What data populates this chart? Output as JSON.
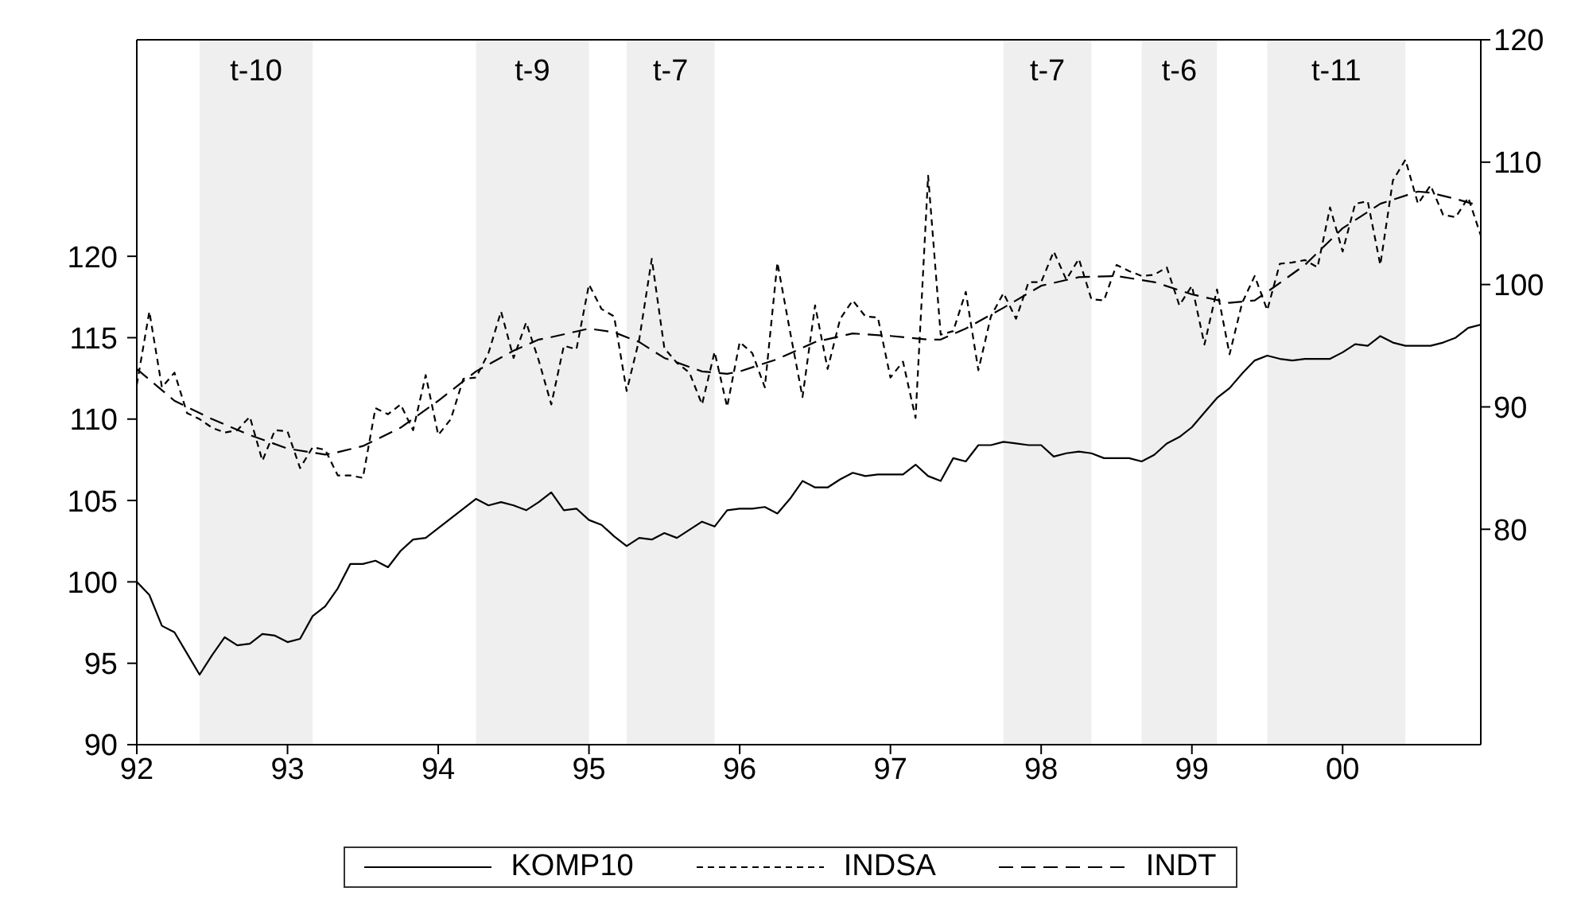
{
  "chart_data": {
    "type": "line",
    "x": [
      "1992-01",
      "1992-02",
      "1992-03",
      "1992-04",
      "1992-05",
      "1992-06",
      "1992-07",
      "1992-08",
      "1992-09",
      "1992-10",
      "1992-11",
      "1992-12",
      "1993-01",
      "1993-02",
      "1993-03",
      "1993-04",
      "1993-05",
      "1993-06",
      "1993-07",
      "1993-08",
      "1993-09",
      "1993-10",
      "1993-11",
      "1993-12",
      "1994-01",
      "1994-02",
      "1994-03",
      "1994-04",
      "1994-05",
      "1994-06",
      "1994-07",
      "1994-08",
      "1994-09",
      "1994-10",
      "1994-11",
      "1994-12",
      "1995-01",
      "1995-02",
      "1995-03",
      "1995-04",
      "1995-05",
      "1995-06",
      "1995-07",
      "1995-08",
      "1995-09",
      "1995-10",
      "1995-11",
      "1995-12",
      "1996-01",
      "1996-02",
      "1996-03",
      "1996-04",
      "1996-05",
      "1996-06",
      "1996-07",
      "1996-08",
      "1996-09",
      "1996-10",
      "1996-11",
      "1996-12",
      "1997-01",
      "1997-02",
      "1997-03",
      "1997-04",
      "1997-05",
      "1997-06",
      "1997-07",
      "1997-08",
      "1997-09",
      "1997-10",
      "1997-11",
      "1997-12",
      "1998-01",
      "1998-02",
      "1998-03",
      "1998-04",
      "1998-05",
      "1998-06",
      "1998-07",
      "1998-08",
      "1998-09",
      "1998-10",
      "1998-11",
      "1998-12",
      "1999-01",
      "1999-02",
      "1999-03",
      "1999-04",
      "1999-05",
      "1999-06",
      "1999-07",
      "1999-08",
      "1999-09",
      "1999-10",
      "1999-11",
      "1999-12",
      "2000-01",
      "2000-02",
      "2000-03",
      "2000-04",
      "2000-05",
      "2000-06",
      "2000-07",
      "2000-08",
      "2000-09",
      "2000-10",
      "2000-11",
      "2000-12"
    ],
    "series": [
      {
        "name": "KOMP10",
        "color": "#000000",
        "line_style": "solid",
        "values": [
          100.0,
          99.2,
          97.3,
          96.9,
          95.6,
          94.3,
          95.5,
          96.6,
          96.1,
          96.2,
          96.8,
          96.7,
          96.3,
          96.5,
          97.9,
          98.5,
          99.6,
          101.1,
          101.1,
          101.3,
          100.9,
          101.9,
          102.6,
          102.7,
          103.3,
          103.9,
          104.5,
          105.1,
          104.7,
          104.9,
          104.7,
          104.4,
          104.9,
          105.5,
          104.4,
          104.5,
          103.8,
          103.5,
          102.8,
          102.2,
          102.7,
          102.6,
          103.0,
          102.7,
          103.2,
          103.7,
          103.4,
          104.4,
          104.5,
          104.5,
          104.6,
          104.2,
          105.1,
          106.2,
          105.8,
          105.8,
          106.3,
          106.7,
          106.5,
          106.6,
          106.6,
          106.6,
          107.2,
          106.5,
          106.2,
          107.6,
          107.4,
          108.4,
          108.4,
          108.6,
          108.5,
          108.4,
          108.4,
          107.7,
          107.9,
          108.0,
          107.9,
          107.6,
          107.6,
          107.6,
          107.4,
          107.8,
          108.5,
          108.9,
          109.5,
          110.4,
          111.3,
          111.9,
          112.8,
          113.6,
          113.9,
          113.7,
          113.6,
          113.7,
          113.7,
          113.7,
          114.1,
          114.6,
          114.5,
          115.1,
          114.7,
          114.5,
          114.5,
          114.5,
          114.7,
          115.0,
          115.6,
          115.8
        ]
      },
      {
        "name": "INDSA",
        "color": "#000000",
        "line_style": "dashed",
        "axis": "y2",
        "values": [
          91.8,
          97.8,
          91.6,
          92.8,
          89.5,
          89.0,
          88.3,
          87.9,
          88.1,
          89.2,
          85.6,
          88.1,
          88.0,
          85.0,
          86.7,
          86.5,
          84.4,
          84.4,
          84.2,
          89.9,
          89.4,
          90.2,
          88.1,
          92.6,
          87.7,
          89.0,
          92.3,
          92.4,
          94.4,
          97.8,
          94.0,
          96.9,
          93.8,
          90.2,
          95.0,
          94.7,
          100.0,
          98.0,
          97.4,
          91.3,
          95.5,
          102.1,
          94.8,
          93.6,
          92.8,
          90.2,
          94.5,
          90.0,
          95.3,
          94.4,
          91.6,
          101.8,
          96.2,
          90.8,
          98.3,
          93.1,
          97.2,
          98.7,
          97.4,
          97.3,
          92.4,
          93.7,
          89.1,
          108.9,
          95.9,
          96.2,
          99.4,
          93.0,
          97.4,
          99.3,
          97.2,
          100.2,
          100.2,
          102.7,
          100.4,
          102.1,
          98.8,
          98.7,
          101.6,
          101.1,
          100.7,
          100.8,
          101.4,
          98.3,
          99.9,
          95.1,
          99.6,
          94.3,
          98.5,
          100.7,
          97.9,
          101.7,
          101.8,
          102.0,
          101.4,
          106.3,
          102.7,
          106.6,
          106.8,
          101.6,
          108.5,
          110.2,
          106.6,
          108.1,
          105.7,
          105.5,
          107.1,
          104.0
        ]
      },
      {
        "name": "INDT",
        "color": "#000000",
        "line_style": "dashed",
        "axis": "y2",
        "x": [
          "1992-01",
          "1992-04",
          "1992-07",
          "1992-10",
          "1993-01",
          "1993-04",
          "1993-05",
          "1993-07",
          "1993-10",
          "1994-01",
          "1994-04",
          "1994-07",
          "1994-09",
          "1994-10",
          "1995-01",
          "1995-03",
          "1995-05",
          "1995-07",
          "1995-10",
          "1995-12",
          "1996-01",
          "1996-04",
          "1996-07",
          "1996-10",
          "1997-01",
          "1997-04",
          "1997-05",
          "1997-07",
          "1997-10",
          "1998-01",
          "1998-04",
          "1998-07",
          "1998-10",
          "1999-01",
          "1999-04",
          "1999-06",
          "1999-07",
          "1999-10",
          "2000-01",
          "2000-04",
          "2000-07",
          "2000-08",
          "2000-10",
          "2000-12"
        ],
        "values": [
          93.1,
          90.5,
          89.0,
          87.7,
          86.6,
          86.1,
          86.3,
          86.8,
          88.3,
          90.5,
          92.9,
          94.6,
          95.5,
          95.7,
          96.4,
          96.1,
          95.3,
          94.0,
          92.9,
          92.7,
          92.9,
          93.9,
          95.3,
          96.0,
          95.8,
          95.5,
          95.5,
          96.4,
          98.1,
          99.9,
          100.6,
          100.7,
          100.2,
          99.2,
          98.5,
          98.7,
          99.4,
          101.6,
          104.6,
          106.6,
          107.6,
          107.5,
          107.0,
          106.4
        ]
      }
    ],
    "xlim": [
      "1992-01",
      "2000-12"
    ],
    "xticks": [
      {
        "value": "1992-01",
        "label": "92"
      },
      {
        "value": "1993-01",
        "label": "93"
      },
      {
        "value": "1994-01",
        "label": "94"
      },
      {
        "value": "1995-01",
        "label": "95"
      },
      {
        "value": "1996-01",
        "label": "96"
      },
      {
        "value": "1997-01",
        "label": "97"
      },
      {
        "value": "1998-01",
        "label": "98"
      },
      {
        "value": "1999-01",
        "label": "99"
      },
      {
        "value": "2000-01",
        "label": "00"
      }
    ],
    "ylim": [
      90,
      133.3
    ],
    "yticks": [
      90,
      95,
      100,
      105,
      110,
      115,
      120
    ],
    "y2lim": [
      62.4,
      120
    ],
    "y2ticks": [
      80,
      90,
      100,
      110,
      120
    ],
    "bands": [
      {
        "axis": "x",
        "from": "1992-06",
        "to": "1993-03",
        "label": "t-10",
        "color": "#efefef"
      },
      {
        "axis": "x",
        "from": "1994-04",
        "to": "1995-01",
        "label": "t-9",
        "color": "#efefef"
      },
      {
        "axis": "x",
        "from": "1995-04",
        "to": "1995-11",
        "label": "t-7",
        "color": "#efefef"
      },
      {
        "axis": "x",
        "from": "1997-10",
        "to": "1998-05",
        "label": "t-7",
        "color": "#efefef"
      },
      {
        "axis": "x",
        "from": "1998-09",
        "to": "1999-03",
        "label": "t-6",
        "color": "#efefef"
      },
      {
        "axis": "x",
        "from": "1999-07",
        "to": "2000-06",
        "label": "t-11",
        "color": "#efefef"
      }
    ],
    "legend": "bottom"
  }
}
